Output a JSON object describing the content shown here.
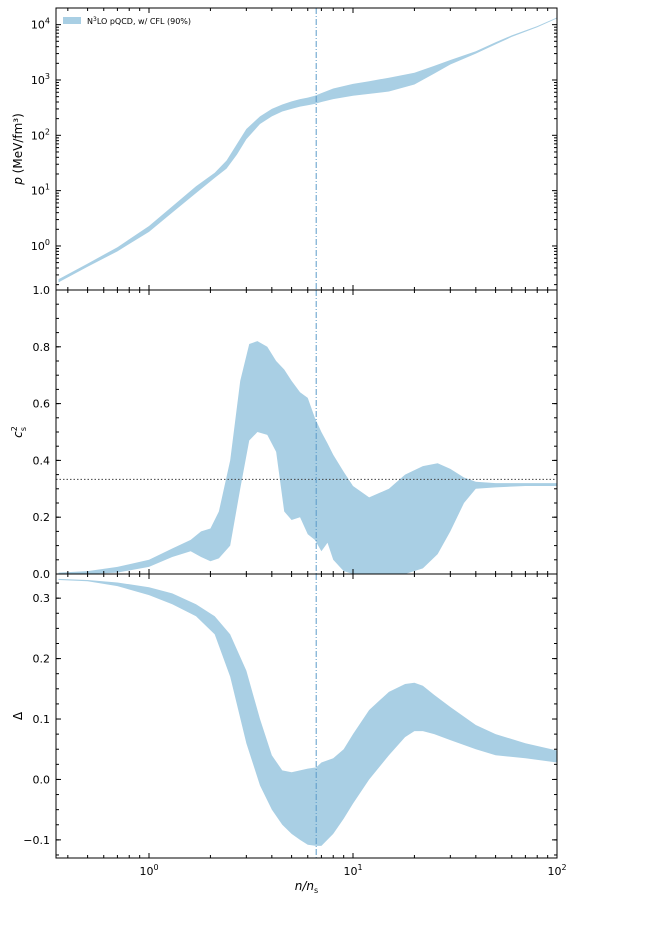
{
  "chart_data": [
    {
      "type": "area",
      "panel": "top",
      "xscale": "log",
      "yscale": "log",
      "xlim": [
        0.35,
        100
      ],
      "ylim": [
        0.16,
        20000
      ],
      "ylabel_var": "p",
      "ylabel_unit": "(MeV/fm³)",
      "yticks": [
        {
          "value": 1,
          "base": "10",
          "exp": "0"
        },
        {
          "value": 10,
          "base": "10",
          "exp": "1"
        },
        {
          "value": 100,
          "base": "10",
          "exp": "2"
        },
        {
          "value": 1000,
          "base": "10",
          "exp": "3"
        },
        {
          "value": 10000,
          "base": "10",
          "exp": "4"
        }
      ],
      "legend": {
        "label_prefix": "N",
        "label_sup": "3",
        "label_suffix": "LO pQCD, w/ CFL (90%)",
        "placement": "top-left"
      },
      "series": [
        {
          "name": "N3LO pQCD, w/ CFL (90%)",
          "color": "#a9cfe4",
          "x": [
            0.36,
            0.5,
            0.7,
            1.0,
            1.3,
            1.7,
            2.1,
            2.4,
            2.7,
            3.0,
            3.5,
            4.0,
            4.5,
            5.0,
            5.5,
            6.0,
            6.5,
            7.0,
            8.0,
            10.0,
            12.0,
            15.0,
            20.0,
            25.0,
            30.0,
            40.0,
            50.0,
            60.0,
            80.0,
            100.0
          ],
          "low": [
            0.22,
            0.42,
            0.8,
            1.8,
            4.0,
            9.0,
            17.0,
            25.0,
            45.0,
            85.0,
            160.0,
            220.0,
            270.0,
            300.0,
            330.0,
            350.0,
            370.0,
            400.0,
            450.0,
            520.0,
            560.0,
            620.0,
            830.0,
            1300.0,
            1900.0,
            3000.0,
            4400.0,
            6000.0,
            9000.0,
            13000.0
          ],
          "high": [
            0.25,
            0.48,
            0.95,
            2.3,
            5.2,
            12.0,
            21.0,
            35.0,
            70.0,
            130.0,
            220.0,
            300.0,
            360.0,
            410.0,
            450.0,
            480.0,
            520.0,
            580.0,
            700.0,
            850.0,
            950.0,
            1100.0,
            1350.0,
            1800.0,
            2300.0,
            3300.0,
            4800.0,
            6400.0,
            9400.0,
            13500.0
          ]
        }
      ],
      "vline_x": 6.6
    },
    {
      "type": "area",
      "panel": "middle",
      "xscale": "log",
      "yscale": "linear",
      "xlim": [
        0.35,
        100
      ],
      "ylim": [
        0.0,
        1.0
      ],
      "ylabel_var": "c",
      "ylabel_sup": "2",
      "ylabel_sub": "s",
      "yticks": [
        {
          "value": 0.0,
          "label": "0.0"
        },
        {
          "value": 0.2,
          "label": "0.2"
        },
        {
          "value": 0.4,
          "label": "0.4"
        },
        {
          "value": 0.6,
          "label": "0.6"
        },
        {
          "value": 0.8,
          "label": "0.8"
        },
        {
          "value": 1.0,
          "label": "1.0"
        }
      ],
      "series": [
        {
          "name": "N3LO pQCD, w/ CFL (90%)",
          "color": "#a9cfe4",
          "x": [
            0.36,
            0.5,
            0.7,
            1.0,
            1.3,
            1.6,
            1.8,
            2.0,
            2.2,
            2.5,
            2.8,
            3.1,
            3.4,
            3.8,
            4.2,
            4.6,
            5.0,
            5.5,
            6.0,
            6.5,
            7.0,
            7.5,
            8.0,
            9.0,
            10.0,
            12.0,
            15.0,
            18.0,
            22.0,
            26.0,
            30.0,
            35.0,
            40.0,
            50.0,
            70.0,
            100.0
          ],
          "low": [
            0.0,
            0.0,
            0.005,
            0.025,
            0.06,
            0.08,
            0.06,
            0.045,
            0.055,
            0.1,
            0.3,
            0.47,
            0.5,
            0.49,
            0.43,
            0.22,
            0.19,
            0.2,
            0.14,
            0.12,
            0.08,
            0.11,
            0.05,
            0.01,
            0.0,
            0.0,
            0.0,
            0.0,
            0.02,
            0.07,
            0.15,
            0.25,
            0.3,
            0.305,
            0.31,
            0.31
          ],
          "high": [
            0.005,
            0.01,
            0.025,
            0.05,
            0.09,
            0.12,
            0.15,
            0.16,
            0.22,
            0.4,
            0.68,
            0.81,
            0.82,
            0.8,
            0.75,
            0.72,
            0.68,
            0.64,
            0.62,
            0.55,
            0.5,
            0.46,
            0.42,
            0.36,
            0.31,
            0.27,
            0.3,
            0.35,
            0.38,
            0.39,
            0.37,
            0.34,
            0.325,
            0.32,
            0.32,
            0.32
          ]
        }
      ],
      "hline_y": 0.3333,
      "vline_x": 6.6
    },
    {
      "type": "area",
      "panel": "bottom",
      "xscale": "log",
      "yscale": "linear",
      "xlim": [
        0.35,
        100
      ],
      "ylim": [
        -0.13,
        0.34
      ],
      "ylabel": "Δ",
      "xlabel_var": "n/n",
      "xlabel_sub": "s",
      "yticks": [
        {
          "value": -0.1,
          "label": "−0.1"
        },
        {
          "value": 0.0,
          "label": "0.0"
        },
        {
          "value": 0.1,
          "label": "0.1"
        },
        {
          "value": 0.2,
          "label": "0.2"
        },
        {
          "value": 0.3,
          "label": "0.3"
        }
      ],
      "xticks": [
        {
          "value": 1,
          "base": "10",
          "exp": "0"
        },
        {
          "value": 10,
          "base": "10",
          "exp": "1"
        },
        {
          "value": 100,
          "base": "10",
          "exp": "2"
        }
      ],
      "series": [
        {
          "name": "N3LO pQCD, w/ CFL (90%)",
          "color": "#a9cfe4",
          "x": [
            0.36,
            0.5,
            0.7,
            1.0,
            1.3,
            1.7,
            2.1,
            2.5,
            3.0,
            3.5,
            4.0,
            4.5,
            5.0,
            5.5,
            6.0,
            6.6,
            7.0,
            8.0,
            9.0,
            10.0,
            12.0,
            15.0,
            18.0,
            20.0,
            22.0,
            25.0,
            30.0,
            40.0,
            50.0,
            70.0,
            100.0
          ],
          "low": [
            0.33,
            0.328,
            0.32,
            0.305,
            0.29,
            0.27,
            0.24,
            0.17,
            0.06,
            -0.01,
            -0.05,
            -0.075,
            -0.09,
            -0.1,
            -0.108,
            -0.11,
            -0.11,
            -0.09,
            -0.065,
            -0.04,
            0.0,
            0.04,
            0.07,
            0.08,
            0.08,
            0.075,
            0.065,
            0.05,
            0.04,
            0.035,
            0.028
          ],
          "high": [
            0.332,
            0.33,
            0.326,
            0.318,
            0.308,
            0.29,
            0.27,
            0.24,
            0.18,
            0.1,
            0.04,
            0.015,
            0.012,
            0.015,
            0.018,
            0.02,
            0.028,
            0.035,
            0.05,
            0.075,
            0.115,
            0.145,
            0.158,
            0.16,
            0.155,
            0.14,
            0.12,
            0.09,
            0.075,
            0.06,
            0.048
          ]
        }
      ],
      "vline_x": 6.6
    }
  ]
}
